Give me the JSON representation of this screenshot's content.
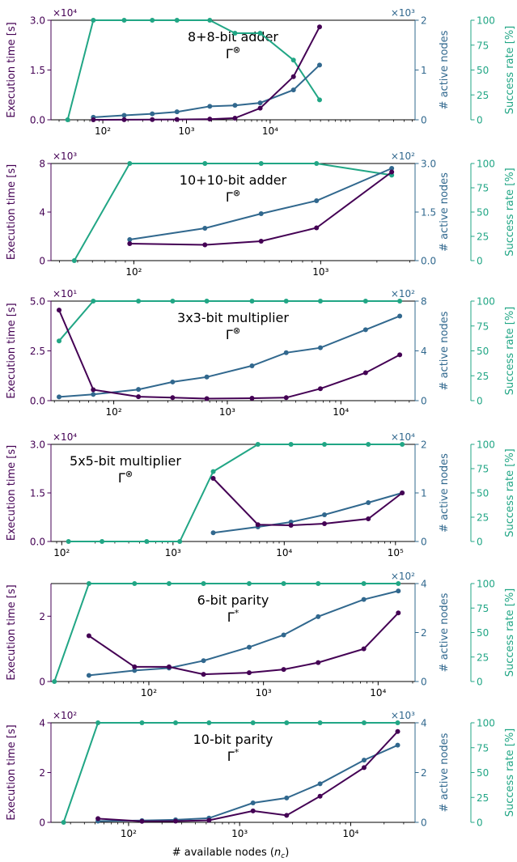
{
  "colors": {
    "time": "#440154",
    "nodes": "#31688e",
    "success": "#21a685",
    "axis": "#000000"
  },
  "xlabel": "# available nodes (n_c)",
  "ylabel_left": "Execution time [s]",
  "ylabel_mid": "# active nodes",
  "ylabel_right": "Success rate [%]",
  "chart_data": [
    {
      "type": "line",
      "title": "8+8-bit adder",
      "subtitle": "Γ⊗",
      "xscale": "log",
      "xlim": [
        24,
        540000
      ],
      "xticks": [
        {
          "v": 100,
          "label": "10²"
        },
        {
          "v": 1000,
          "label": "10³"
        },
        {
          "v": 10000,
          "label": "10⁴"
        }
      ],
      "left": {
        "ylim": [
          0,
          3.0
        ],
        "ticks": [
          "0.0",
          "1.5",
          "3.0"
        ],
        "multiplier": "×10⁴"
      },
      "mid": {
        "ylim": [
          0,
          2
        ],
        "ticks": [
          "0",
          "1",
          "2"
        ],
        "multiplier": "×10³"
      },
      "right": {
        "ylim": [
          0,
          100
        ],
        "ticks": [
          "0",
          "25",
          "50",
          "75",
          "100"
        ]
      },
      "series": [
        {
          "name": "Execution time",
          "axis": "left",
          "x": [
            77,
            180,
            390,
            770,
            1900,
            3800,
            7600,
            19000,
            39000
          ],
          "y": [
            0.001,
            0.003,
            0.005,
            0.01,
            0.02,
            0.05,
            0.35,
            1.3,
            2.8
          ]
        },
        {
          "name": "# active nodes",
          "axis": "mid",
          "x": [
            77,
            180,
            390,
            770,
            1900,
            3800,
            7600,
            19000,
            39000
          ],
          "y": [
            0.05,
            0.09,
            0.12,
            0.16,
            0.27,
            0.29,
            0.34,
            0.6,
            1.1
          ]
        },
        {
          "name": "Success rate",
          "axis": "right",
          "x": [
            38,
            77,
            180,
            390,
            770,
            1900,
            3800,
            7600,
            19000,
            39000
          ],
          "y": [
            0,
            100,
            100,
            100,
            100,
            100,
            87,
            87,
            60,
            20
          ]
        }
      ]
    },
    {
      "type": "line",
      "title": "10+10-bit adder",
      "subtitle": "Γ⊗",
      "xscale": "log",
      "xlim": [
        36,
        3200
      ],
      "xticks": [
        {
          "v": 100,
          "label": "10²"
        },
        {
          "v": 1000,
          "label": "10³"
        }
      ],
      "left": {
        "ylim": [
          0,
          8
        ],
        "ticks": [
          "0",
          "4",
          "8"
        ],
        "multiplier": "×10³"
      },
      "mid": {
        "ylim": [
          0,
          3.0
        ],
        "ticks": [
          "0.0",
          "1.5",
          "3.0"
        ],
        "multiplier": "×10²"
      },
      "right": {
        "ylim": [
          0,
          100
        ],
        "ticks": [
          "0",
          "25",
          "50",
          "75",
          "100"
        ]
      },
      "series": [
        {
          "name": "Execution time",
          "axis": "left",
          "x": [
            95,
            240,
            480,
            950,
            2400
          ],
          "y": [
            1.4,
            1.3,
            1.6,
            2.7,
            7.3
          ]
        },
        {
          "name": "# active nodes",
          "axis": "mid",
          "x": [
            95,
            240,
            480,
            950,
            2400
          ],
          "y": [
            0.65,
            1.0,
            1.45,
            1.85,
            2.85
          ]
        },
        {
          "name": "Success rate",
          "axis": "right",
          "x": [
            48,
            95,
            240,
            480,
            950,
            2400
          ],
          "y": [
            0,
            100,
            100,
            100,
            100,
            88
          ]
        }
      ]
    },
    {
      "type": "line",
      "title": "3x3-bit multiplier",
      "subtitle": "Γ⊗",
      "xscale": "log",
      "xlim": [
        28,
        45000
      ],
      "xticks": [
        {
          "v": 100,
          "label": "10²"
        },
        {
          "v": 1000,
          "label": "10³"
        },
        {
          "v": 10000,
          "label": "10⁴"
        }
      ],
      "left": {
        "ylim": [
          0,
          5.0
        ],
        "ticks": [
          "0.0",
          "2.5",
          "5.0"
        ],
        "multiplier": "×10¹"
      },
      "mid": {
        "ylim": [
          0,
          8
        ],
        "ticks": [
          "0",
          "4",
          "8"
        ],
        "multiplier": "×10²"
      },
      "right": {
        "ylim": [
          0,
          100
        ],
        "ticks": [
          "0",
          "25",
          "50",
          "75",
          "100"
        ]
      },
      "series": [
        {
          "name": "Execution time",
          "axis": "left",
          "x": [
            33,
            66,
            165,
            330,
            660,
            1650,
            3300,
            6600,
            16500,
            33000
          ],
          "y": [
            4.55,
            0.55,
            0.2,
            0.15,
            0.1,
            0.12,
            0.15,
            0.6,
            1.4,
            2.3
          ]
        },
        {
          "name": "# active nodes",
          "axis": "mid",
          "x": [
            33,
            66,
            165,
            330,
            660,
            1650,
            3300,
            6600,
            16500,
            33000
          ],
          "y": [
            0.3,
            0.5,
            0.9,
            1.5,
            1.9,
            2.8,
            3.85,
            4.25,
            5.7,
            6.8
          ]
        },
        {
          "name": "Success rate",
          "axis": "right",
          "x": [
            33,
            66,
            165,
            330,
            660,
            1650,
            3300,
            6600,
            16500,
            33000
          ],
          "y": [
            60,
            100,
            100,
            100,
            100,
            100,
            100,
            100,
            100,
            100
          ]
        }
      ]
    },
    {
      "type": "line",
      "title": "5x5-bit multiplier",
      "subtitle": "Γ⊗",
      "xscale": "log",
      "xlim": [
        80,
        150000
      ],
      "xticks": [
        {
          "v": 100,
          "label": "10²"
        },
        {
          "v": 1000,
          "label": "10³"
        },
        {
          "v": 10000,
          "label": "10⁴"
        },
        {
          "v": 100000,
          "label": "10⁵"
        }
      ],
      "left": {
        "ylim": [
          0,
          3.0
        ],
        "ticks": [
          "0.0",
          "1.5",
          "3.0"
        ],
        "multiplier": "×10⁴"
      },
      "mid": {
        "ylim": [
          0,
          2
        ],
        "ticks": [
          "0",
          "1",
          "2"
        ],
        "multiplier": "×10⁴"
      },
      "right": {
        "ylim": [
          0,
          100
        ],
        "ticks": [
          "0",
          "25",
          "50",
          "75",
          "100"
        ]
      },
      "series": [
        {
          "name": "Execution time",
          "axis": "left",
          "x": [
            2300,
            5800,
            11500,
            23000,
            57000,
            115000
          ],
          "y": [
            1.95,
            0.52,
            0.5,
            0.55,
            0.7,
            1.5
          ]
        },
        {
          "name": "# active nodes",
          "axis": "mid",
          "x": [
            2300,
            5800,
            11500,
            23000,
            57000,
            115000
          ],
          "y": [
            0.18,
            0.3,
            0.4,
            0.55,
            0.8,
            1.0
          ]
        },
        {
          "name": "Success rate",
          "axis": "right",
          "x": [
            115,
            230,
            580,
            1150,
            2300,
            5800,
            11500,
            23000,
            57000,
            115000
          ],
          "y": [
            0,
            0,
            0,
            0,
            72,
            100,
            100,
            100,
            100,
            100
          ]
        }
      ]
    },
    {
      "type": "line",
      "title": "6-bit parity",
      "subtitle": "Γ*",
      "xscale": "log",
      "xlim": [
        14,
        21000
      ],
      "xticks": [
        {
          "v": 100,
          "label": "10²"
        },
        {
          "v": 1000,
          "label": "10³"
        },
        {
          "v": 10000,
          "label": "10⁴"
        }
      ],
      "left": {
        "ylim": [
          0,
          3
        ],
        "ticks": [
          "0",
          "2"
        ],
        "multiplier": ""
      },
      "mid": {
        "ylim": [
          0,
          4
        ],
        "ticks": [
          "0",
          "2",
          "4"
        ],
        "multiplier": "×10²"
      },
      "right": {
        "ylim": [
          0,
          100
        ],
        "ticks": [
          "0",
          "25",
          "50",
          "75",
          "100"
        ]
      },
      "series": [
        {
          "name": "Execution time",
          "axis": "left",
          "x": [
            30,
            75,
            150,
            300,
            750,
            1500,
            3000,
            7500,
            15000
          ],
          "y": [
            1.4,
            0.45,
            0.45,
            0.22,
            0.27,
            0.37,
            0.58,
            1.0,
            2.1
          ]
        },
        {
          "name": "# active nodes",
          "axis": "mid",
          "x": [
            30,
            75,
            150,
            300,
            750,
            1500,
            3000,
            7500,
            15000
          ],
          "y": [
            0.25,
            0.45,
            0.55,
            0.85,
            1.4,
            1.9,
            2.65,
            3.35,
            3.7
          ]
        },
        {
          "name": "Success rate",
          "axis": "right",
          "x": [
            15,
            30,
            75,
            150,
            300,
            750,
            1500,
            3000,
            7500,
            15000
          ],
          "y": [
            0,
            100,
            100,
            100,
            100,
            100,
            100,
            100,
            100,
            100
          ]
        }
      ]
    },
    {
      "type": "line",
      "title": "10-bit parity",
      "subtitle": "Γ*",
      "xscale": "log",
      "xlim": [
        20,
        38000
      ],
      "xticks": [
        {
          "v": 100,
          "label": "10²"
        },
        {
          "v": 1000,
          "label": "10³"
        },
        {
          "v": 10000,
          "label": "10⁴"
        }
      ],
      "left": {
        "ylim": [
          0,
          4
        ],
        "ticks": [
          "0",
          "2",
          "4"
        ],
        "multiplier": "×10²"
      },
      "mid": {
        "ylim": [
          0,
          4
        ],
        "ticks": [
          "0",
          "2",
          "4"
        ],
        "multiplier": "×10³"
      },
      "right": {
        "ylim": [
          0,
          100
        ],
        "ticks": [
          "0",
          "25",
          "50",
          "75",
          "100"
        ]
      },
      "series": [
        {
          "name": "Execution time",
          "axis": "left",
          "x": [
            53,
            132,
            265,
            530,
            1320,
            2650,
            5300,
            13200,
            26500
          ],
          "y": [
            0.15,
            0.04,
            0.05,
            0.08,
            0.46,
            0.28,
            1.05,
            2.2,
            3.65
          ]
        },
        {
          "name": "# active nodes",
          "axis": "mid",
          "x": [
            53,
            132,
            265,
            530,
            1320,
            2650,
            5300,
            13200,
            26500
          ],
          "y": [
            0.05,
            0.07,
            0.1,
            0.17,
            0.78,
            0.98,
            1.55,
            2.5,
            3.1
          ]
        },
        {
          "name": "Success rate",
          "axis": "right",
          "x": [
            26,
            53,
            132,
            265,
            530,
            1320,
            2650,
            5300,
            13200,
            26500
          ],
          "y": [
            0,
            100,
            100,
            100,
            100,
            100,
            100,
            100,
            100,
            100
          ]
        }
      ]
    }
  ]
}
